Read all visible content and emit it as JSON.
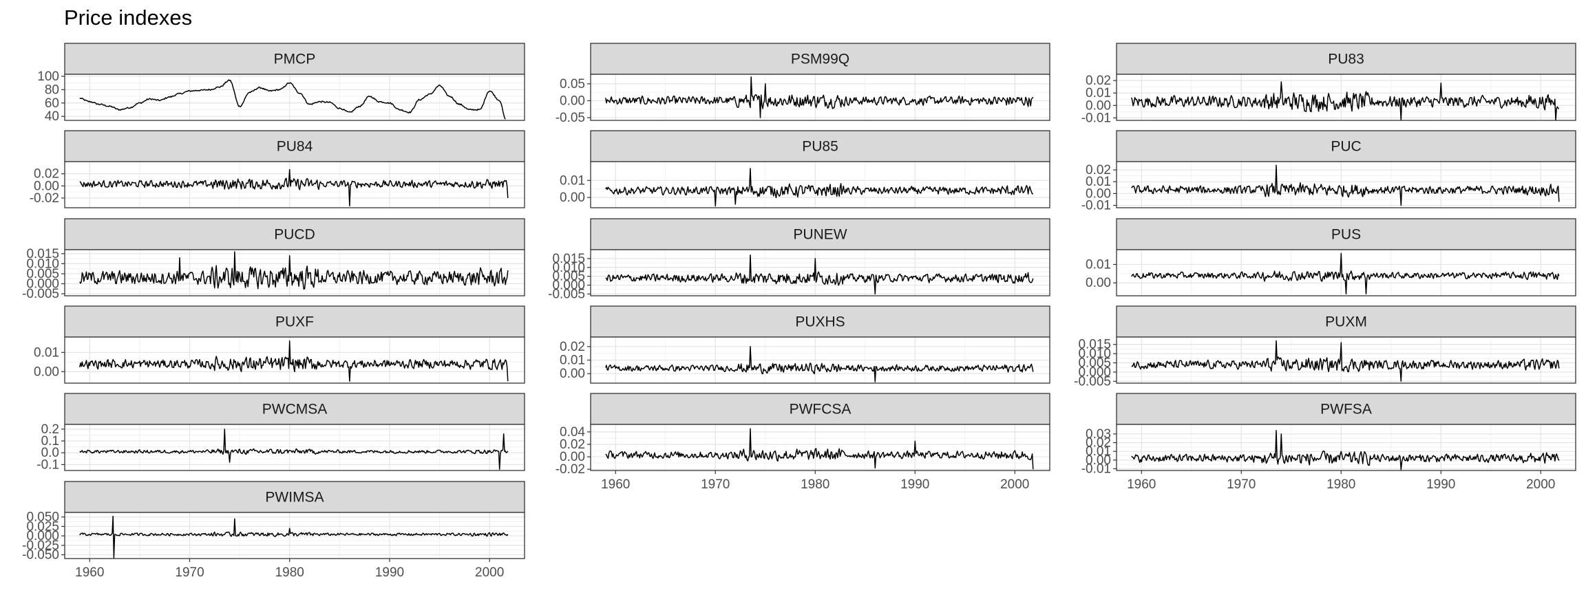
{
  "chart_data": {
    "type": "line",
    "title": "Price indexes",
    "layout": "facet_wrap",
    "ncol": 3,
    "xlim": [
      1957.5,
      2003.5
    ],
    "x_ticks": [
      1960,
      1970,
      1980,
      1990,
      2000
    ],
    "x_range": [
      1959.0,
      2001.8
    ],
    "grid": true,
    "theme": "bw",
    "line_color": "#000000",
    "strip_fill": "#d9d9d9",
    "panels": [
      {
        "name": "PMCP",
        "ylim": [
          34,
          103
        ],
        "yticks": [
          40,
          60,
          80,
          100
        ],
        "ytick_labels": [
          "40",
          "60",
          "80",
          "100"
        ],
        "series_type": "level",
        "base": 62,
        "amplitude": 22,
        "noise": 2,
        "spikes": [],
        "end": [
          2001.5,
          36
        ],
        "series": [
          [
            1959,
            67
          ],
          [
            1960,
            62
          ],
          [
            1961,
            58
          ],
          [
            1962,
            55
          ],
          [
            1963,
            50
          ],
          [
            1964,
            53
          ],
          [
            1965,
            60
          ],
          [
            1966,
            66
          ],
          [
            1967,
            64
          ],
          [
            1968,
            69
          ],
          [
            1969,
            74
          ],
          [
            1970,
            78
          ],
          [
            1971,
            79
          ],
          [
            1972,
            80
          ],
          [
            1973,
            84
          ],
          [
            1974,
            94
          ],
          [
            1975,
            55
          ],
          [
            1976,
            76
          ],
          [
            1977,
            83
          ],
          [
            1978,
            78
          ],
          [
            1979,
            80
          ],
          [
            1980,
            90
          ],
          [
            1981,
            75
          ],
          [
            1982,
            58
          ],
          [
            1983,
            62
          ],
          [
            1984,
            61
          ],
          [
            1985,
            52
          ],
          [
            1986,
            46
          ],
          [
            1987,
            55
          ],
          [
            1988,
            70
          ],
          [
            1989,
            62
          ],
          [
            1990,
            60
          ],
          [
            1991,
            50
          ],
          [
            1992,
            46
          ],
          [
            1993,
            65
          ],
          [
            1994,
            73
          ],
          [
            1995,
            86
          ],
          [
            1996,
            70
          ],
          [
            1997,
            58
          ],
          [
            1998,
            50
          ],
          [
            1999,
            50
          ],
          [
            2000,
            78
          ],
          [
            2001,
            64
          ],
          [
            2001.6,
            36
          ]
        ]
      },
      {
        "name": "PSM99Q",
        "ylim": [
          -0.058,
          0.078
        ],
        "yticks": [
          -0.05,
          0,
          0.05
        ],
        "ytick_labels": [
          "-0.05",
          "0.00",
          "0.05"
        ],
        "series_type": "noise",
        "base": 0,
        "amplitude": 0.011,
        "spikes": [
          [
            1973.6,
            0.07
          ],
          [
            1974.5,
            -0.05
          ],
          [
            1975,
            0.05
          ]
        ]
      },
      {
        "name": "PU83",
        "ylim": [
          -0.012,
          0.025
        ],
        "yticks": [
          -0.01,
          0,
          0.01,
          0.02
        ],
        "ytick_labels": [
          "-0.01",
          "0.00",
          "0.01",
          "0.02"
        ],
        "series_type": "noise",
        "base": 0.003,
        "amplitude": 0.004,
        "spikes": [
          [
            1974,
            0.019
          ],
          [
            1986,
            -0.012
          ],
          [
            1990,
            0.018
          ],
          [
            2001.5,
            -0.013
          ]
        ]
      },
      {
        "name": "PU84",
        "ylim": [
          -0.036,
          0.04
        ],
        "yticks": [
          -0.02,
          0,
          0.02
        ],
        "ytick_labels": [
          "-0.02",
          "0.00",
          "0.02"
        ],
        "series_type": "noise",
        "base": 0.003,
        "amplitude": 0.005,
        "spikes": [
          [
            1980,
            0.027
          ],
          [
            1986,
            -0.033
          ],
          [
            2001.8,
            -0.02
          ]
        ]
      },
      {
        "name": "PU85",
        "ylim": [
          -0.006,
          0.021
        ],
        "yticks": [
          0,
          0.01
        ],
        "ytick_labels": [
          "0.00",
          "0.01"
        ],
        "series_type": "noise",
        "base": 0.004,
        "amplitude": 0.002,
        "spikes": [
          [
            1973.5,
            0.017
          ],
          [
            1970,
            -0.005
          ],
          [
            1972,
            -0.004
          ]
        ]
      },
      {
        "name": "PUC",
        "ylim": [
          -0.012,
          0.027
        ],
        "yticks": [
          -0.01,
          0,
          0.01,
          0.02
        ],
        "ytick_labels": [
          "-0.01",
          "0.00",
          "0.01",
          "0.02"
        ],
        "series_type": "noise",
        "base": 0.003,
        "amplitude": 0.003,
        "spikes": [
          [
            1973.5,
            0.024
          ],
          [
            1986,
            -0.01
          ],
          [
            2001.8,
            -0.007
          ]
        ]
      },
      {
        "name": "PUCD",
        "ylim": [
          -0.006,
          0.017
        ],
        "yticks": [
          -0.005,
          0,
          0.005,
          0.01,
          0.015
        ],
        "ytick_labels": [
          "-0.005",
          "0.000",
          "0.005",
          "0.010",
          "0.015"
        ],
        "series_type": "noise",
        "base": 0.003,
        "amplitude": 0.003,
        "spikes": [
          [
            1974.5,
            0.016
          ],
          [
            1980,
            0.014
          ],
          [
            1969,
            0.013
          ]
        ]
      },
      {
        "name": "PUNEW",
        "ylim": [
          -0.006,
          0.02
        ],
        "yticks": [
          -0.005,
          0,
          0.005,
          0.01,
          0.015
        ],
        "ytick_labels": [
          "-0.005",
          "0.000",
          "0.005",
          "0.010",
          "0.015"
        ],
        "series_type": "noise",
        "base": 0.004,
        "amplitude": 0.002,
        "spikes": [
          [
            1973.5,
            0.017
          ],
          [
            1980,
            0.015
          ],
          [
            1986,
            -0.005
          ]
        ]
      },
      {
        "name": "PUS",
        "ylim": [
          -0.007,
          0.018
        ],
        "yticks": [
          0,
          0.01
        ],
        "ytick_labels": [
          "0.00",
          "0.01"
        ],
        "series_type": "noise",
        "base": 0.004,
        "amplitude": 0.0015,
        "spikes": [
          [
            1980,
            0.016
          ],
          [
            1980.5,
            -0.006
          ],
          [
            1982.5,
            -0.006
          ]
        ]
      },
      {
        "name": "PUXF",
        "ylim": [
          -0.006,
          0.018
        ],
        "yticks": [
          0,
          0.01
        ],
        "ytick_labels": [
          "0.00",
          "0.01"
        ],
        "series_type": "noise",
        "base": 0.004,
        "amplitude": 0.002,
        "spikes": [
          [
            1980,
            0.016
          ],
          [
            1986,
            -0.005
          ],
          [
            2001.8,
            -0.005
          ]
        ]
      },
      {
        "name": "PUXHS",
        "ylim": [
          -0.007,
          0.027
        ],
        "yticks": [
          0,
          0.01,
          0.02
        ],
        "ytick_labels": [
          "0.00",
          "0.01",
          "0.02"
        ],
        "series_type": "noise",
        "base": 0.004,
        "amplitude": 0.002,
        "spikes": [
          [
            1973.5,
            0.02
          ],
          [
            1986,
            -0.006
          ]
        ]
      },
      {
        "name": "PUXM",
        "ylim": [
          -0.006,
          0.019
        ],
        "yticks": [
          -0.005,
          0,
          0.005,
          0.01,
          0.015
        ],
        "ytick_labels": [
          "-0.005",
          "0.000",
          "0.005",
          "0.010",
          "0.015"
        ],
        "series_type": "noise",
        "base": 0.004,
        "amplitude": 0.002,
        "spikes": [
          [
            1973.5,
            0.017
          ],
          [
            1980,
            0.016
          ],
          [
            1986,
            -0.005
          ]
        ]
      },
      {
        "name": "PWCMSA",
        "ylim": [
          -0.15,
          0.24
        ],
        "yticks": [
          -0.1,
          0,
          0.1,
          0.2
        ],
        "ytick_labels": [
          "-0.1",
          "0.0",
          "0.1",
          "0.2"
        ],
        "series_type": "noise",
        "base": 0.01,
        "amplitude": 0.012,
        "spikes": [
          [
            1973.5,
            0.2
          ],
          [
            1974,
            -0.08
          ],
          [
            2001.4,
            0.16
          ],
          [
            2001,
            -0.14
          ]
        ]
      },
      {
        "name": "PWFCSA",
        "ylim": [
          -0.022,
          0.052
        ],
        "yticks": [
          -0.02,
          0,
          0.02,
          0.04
        ],
        "ytick_labels": [
          "-0.02",
          "0.00",
          "0.02",
          "0.04"
        ],
        "series_type": "noise",
        "base": 0.003,
        "amplitude": 0.005,
        "spikes": [
          [
            1973.5,
            0.045
          ],
          [
            1986,
            -0.018
          ],
          [
            1990,
            0.025
          ],
          [
            2001.8,
            -0.02
          ]
        ]
      },
      {
        "name": "PWFSA",
        "ylim": [
          -0.012,
          0.041
        ],
        "yticks": [
          -0.01,
          0,
          0.01,
          0.02,
          0.03
        ],
        "ytick_labels": [
          "-0.01",
          "0.00",
          "0.01",
          "0.02",
          "0.03"
        ],
        "series_type": "noise",
        "base": 0.002,
        "amplitude": 0.004,
        "spikes": [
          [
            1973.5,
            0.034
          ],
          [
            1974,
            0.03
          ],
          [
            1986,
            -0.011
          ]
        ]
      },
      {
        "name": "PWIMSA",
        "ylim": [
          -0.06,
          0.062
        ],
        "yticks": [
          -0.05,
          -0.025,
          0,
          0.025,
          0.05
        ],
        "ytick_labels": [
          "-0.050",
          "-0.025",
          "0.000",
          "0.025",
          "0.050"
        ],
        "series_type": "noise",
        "base": 0.004,
        "amplitude": 0.003,
        "spikes": [
          [
            1962.3,
            0.052
          ],
          [
            1962.4,
            -0.058
          ],
          [
            1974.5,
            0.045
          ],
          [
            1980,
            0.02
          ]
        ]
      }
    ]
  }
}
